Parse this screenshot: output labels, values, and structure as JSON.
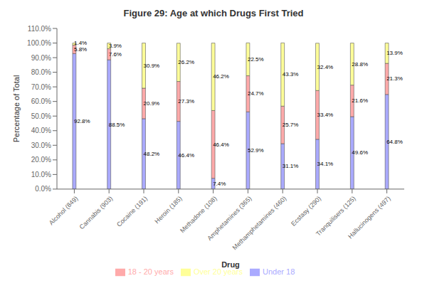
{
  "chart_data": {
    "type": "bar",
    "title": "Figure 29: Age at which Drugs First Tried",
    "xlabel": "Drug",
    "ylabel": "Percentage of Total",
    "categories": [
      "Alcohol (849)",
      "Cannabis (903)",
      "Cocaine (191)",
      "Heroin (185)",
      "Methadone (108)",
      "Amphetamines (365)",
      "Methamphetamines (460)",
      "Ecstasy (290)",
      "Tranquilisers (125)",
      "Hallucinogens (497)"
    ],
    "series": [
      {
        "name": "Under 18",
        "color": "#aaaaff",
        "values": [
          92.8,
          88.5,
          48.2,
          46.4,
          7.4,
          52.9,
          31.1,
          34.1,
          49.6,
          64.8
        ],
        "value_labels": [
          "92.8%",
          "88.5%",
          "48.2%",
          "46.4%",
          "7.4%",
          "52.9%",
          "31.1%",
          "34.1%",
          "49.6%",
          "64.8%"
        ]
      },
      {
        "name": "18 - 20 years",
        "color": "#ffaaaa",
        "values": [
          5.8,
          7.6,
          20.9,
          27.3,
          46.4,
          24.7,
          25.7,
          33.4,
          21.6,
          21.3
        ],
        "value_labels": [
          "5.8%",
          "7.6%",
          "20.9%",
          "27.3%",
          "46.4%",
          "24.7%",
          "25.7%",
          "33.4%",
          "21.6%",
          "21.3%"
        ]
      },
      {
        "name": "Over 20 years",
        "color": "#ffff99",
        "values": [
          1.4,
          3.9,
          30.9,
          26.2,
          46.2,
          22.5,
          43.3,
          32.4,
          28.8,
          13.9
        ],
        "value_labels": [
          "1.4%",
          "3.9%",
          "30.9%",
          "26.2%",
          "46.2%",
          "22.5%",
          "43.3%",
          "32.4%",
          "28.8%",
          "13.9%"
        ]
      }
    ],
    "stacked": true,
    "data_labels": true,
    "grid": false,
    "legend": "bottom",
    "ylim": [
      0,
      110
    ],
    "yticks": [
      {
        "value": 0,
        "label": "0.0%"
      },
      {
        "value": 10,
        "label": "10.0%"
      },
      {
        "value": 20,
        "label": "20.0%"
      },
      {
        "value": 30,
        "label": "30.0%"
      },
      {
        "value": 40,
        "label": "40.0%"
      },
      {
        "value": 50,
        "label": "50.0%"
      },
      {
        "value": 60,
        "label": "60.0%"
      },
      {
        "value": 70,
        "label": "70.0%"
      },
      {
        "value": 80,
        "label": "80.0%"
      },
      {
        "value": 90,
        "label": "90.0%"
      },
      {
        "value": 100,
        "label": "100.0%"
      },
      {
        "value": 110,
        "label": "110.0%"
      }
    ]
  }
}
